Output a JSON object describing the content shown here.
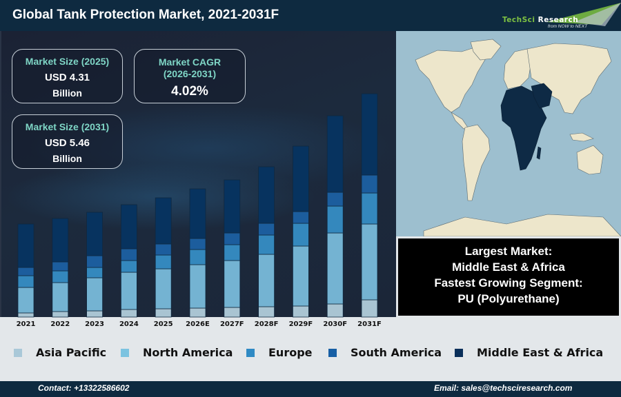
{
  "header": {
    "title": "Global Tank Protection Market, 2021-2031F",
    "logo": {
      "brand_part1": "TechSci",
      "brand_part2": "Research",
      "tagline": "from NOW to NEXT"
    }
  },
  "kpis": [
    {
      "label": "Market Size (2025)",
      "value": "USD 4.31",
      "unit": "Billion"
    },
    {
      "label_line1": "Market CAGR",
      "label_line2": "(2026-2031)",
      "value": "4.02%"
    },
    {
      "label": "Market Size (2031)",
      "value": "USD 5.46",
      "unit": "Billion"
    }
  ],
  "info_box": {
    "line1": "Largest Market:",
    "line2": "Middle East & Africa",
    "line3": "Fastest Growing Segment:",
    "line4": "PU (Polyurethane)"
  },
  "map": {
    "highlighted_region": "Middle East & Africa",
    "highlight_color": "#0e2a45",
    "land_color": "#ede6cb",
    "water_color": "#9dbfcf"
  },
  "chart_data": {
    "type": "bar",
    "stacked": true,
    "title": "Global Tank Protection Market, 2021-2031F",
    "xlabel": "",
    "ylabel": "",
    "y_axis_shown": false,
    "value_units": "relative (estimated from bar heights; no y-axis shown)",
    "categories": [
      "2021",
      "2022",
      "2023",
      "2024",
      "2025",
      "2026E",
      "2027F",
      "2028F",
      "2029F",
      "2030F",
      "2031F"
    ],
    "series": [
      {
        "name": "Asia Pacific",
        "color": "#a9c4d2",
        "values": [
          6,
          8,
          9,
          11,
          12,
          13,
          14,
          15,
          16,
          19,
          25
        ]
      },
      {
        "name": "North America",
        "color": "#74b3d2",
        "values": [
          37,
          42,
          48,
          54,
          58,
          63,
          68,
          76,
          87,
          103,
          110
        ]
      },
      {
        "name": "Europe",
        "color": "#3488bd",
        "values": [
          17,
          17,
          15,
          17,
          20,
          22,
          23,
          28,
          33,
          39,
          45
        ]
      },
      {
        "name": "South America",
        "color": "#1c5d9d",
        "values": [
          12,
          13,
          17,
          17,
          16,
          16,
          17,
          17,
          17,
          20,
          26
        ]
      },
      {
        "name": "Middle East & Africa",
        "color": "#07335f",
        "values": [
          63,
          63,
          63,
          64,
          67,
          72,
          77,
          82,
          95,
          111,
          118
        ]
      }
    ],
    "ylim": [
      0,
      335
    ],
    "grid": false,
    "legend": "bottom"
  },
  "footer": {
    "contact": "Contact: +13322586602",
    "email": "Email: sales@techsciresearch.com"
  }
}
